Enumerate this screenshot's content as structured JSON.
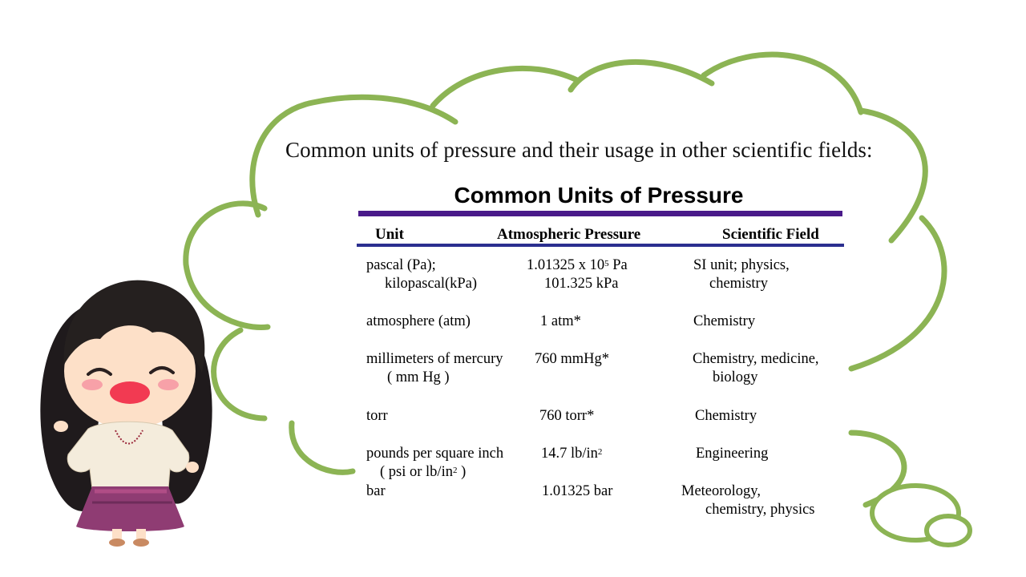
{
  "intro_text": "Common units of pressure and their usage in other scientific fields:",
  "table": {
    "title": "Common Units of Pressure",
    "headers": {
      "unit": "Unit",
      "pressure": "Atmospheric Pressure",
      "field": "Scientific Field"
    },
    "rows": [
      {
        "unit_line1": "pascal (Pa);",
        "unit_line2": "kilopascal(kPa)",
        "pressure_line1_prefix": "1.01325 x 10",
        "pressure_line1_sup": "5",
        "pressure_line1_suffix": " Pa",
        "pressure_line2": "101.325 kPa",
        "field_line1": "SI unit; physics,",
        "field_line2": "chemistry"
      },
      {
        "unit_line1": "atmosphere  (atm)",
        "pressure_line1": "1 atm*",
        "field_line1": "Chemistry"
      },
      {
        "unit_line1": "millimeters of mercury",
        "unit_line2": "( mm Hg )",
        "pressure_line1": "760 mmHg*",
        "field_line1": "Chemistry,  medicine,",
        "field_line2": "biology"
      },
      {
        "unit_line1": "torr",
        "pressure_line1": "760 torr*",
        "field_line1": "Chemistry"
      },
      {
        "unit_line1": "pounds per square  inch",
        "unit_line2_prefix": "( psi or lb/in",
        "unit_line2_sup": "2",
        "unit_line2_suffix": " )",
        "pressure_line1_prefix": "14.7 lb/in",
        "pressure_line1_sup": "2",
        "field_line1": "Engineering"
      },
      {
        "unit_line1": "bar",
        "pressure_line1": "1.01325 bar",
        "field_line1": "Meteorology,",
        "field_line2": "chemistry,  physics"
      }
    ]
  },
  "colors": {
    "cloud_outline": "#8cb454",
    "title_rule": "#4a1a8a",
    "header_rule": "#2b2f8f"
  }
}
